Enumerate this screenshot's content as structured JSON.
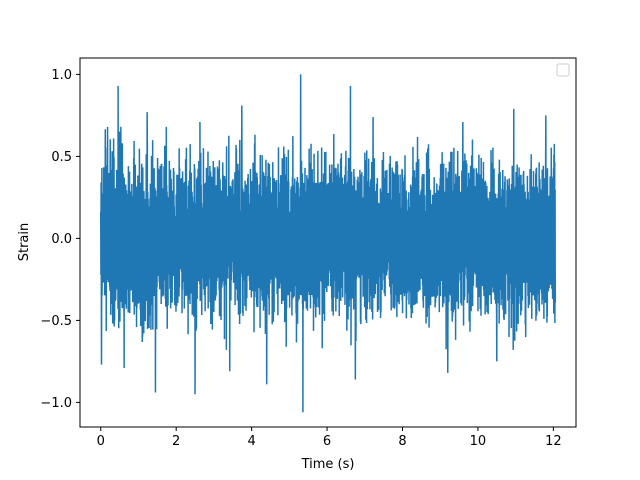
{
  "chart_data": {
    "type": "line",
    "xlabel": "Time (s)",
    "ylabel": "Strain",
    "xlim": [
      -0.55,
      12.6
    ],
    "ylim": [
      -1.15,
      1.1
    ],
    "xticks": [
      0,
      2,
      4,
      6,
      8,
      10,
      12
    ],
    "yticks": [
      -1.0,
      -0.5,
      0.0,
      0.5,
      1.0
    ],
    "xtick_labels": [
      "0",
      "2",
      "4",
      "6",
      "8",
      "10",
      "12"
    ],
    "ytick_labels": [
      "−1.0",
      "−0.5",
      "0.0",
      "0.5",
      "1.0"
    ],
    "grid": false,
    "legend": {
      "placement": "top-right",
      "entries": []
    },
    "series": [
      {
        "color": "#1f77b4",
        "x_range": [
          0,
          12.05
        ],
        "baseline_band": [
          -0.5,
          0.5
        ],
        "peaks": [
          {
            "x": 0.46,
            "y": 0.93
          },
          {
            "x": 1.23,
            "y": 0.77
          },
          {
            "x": 2.63,
            "y": 0.71
          },
          {
            "x": 3.74,
            "y": 0.81
          },
          {
            "x": 5.3,
            "y": 1.0
          },
          {
            "x": 6.62,
            "y": 0.93
          },
          {
            "x": 7.22,
            "y": 0.74
          },
          {
            "x": 9.6,
            "y": 0.71
          },
          {
            "x": 10.95,
            "y": 0.79
          },
          {
            "x": 11.8,
            "y": 0.75
          }
        ],
        "troughs": [
          {
            "x": 0.02,
            "y": -0.77
          },
          {
            "x": 0.62,
            "y": -0.79
          },
          {
            "x": 1.45,
            "y": -0.94
          },
          {
            "x": 2.5,
            "y": -0.95
          },
          {
            "x": 3.42,
            "y": -0.81
          },
          {
            "x": 4.4,
            "y": -0.89
          },
          {
            "x": 5.36,
            "y": -1.06
          },
          {
            "x": 6.75,
            "y": -0.86
          },
          {
            "x": 9.2,
            "y": -0.82
          },
          {
            "x": 10.5,
            "y": -0.75
          }
        ]
      }
    ]
  }
}
